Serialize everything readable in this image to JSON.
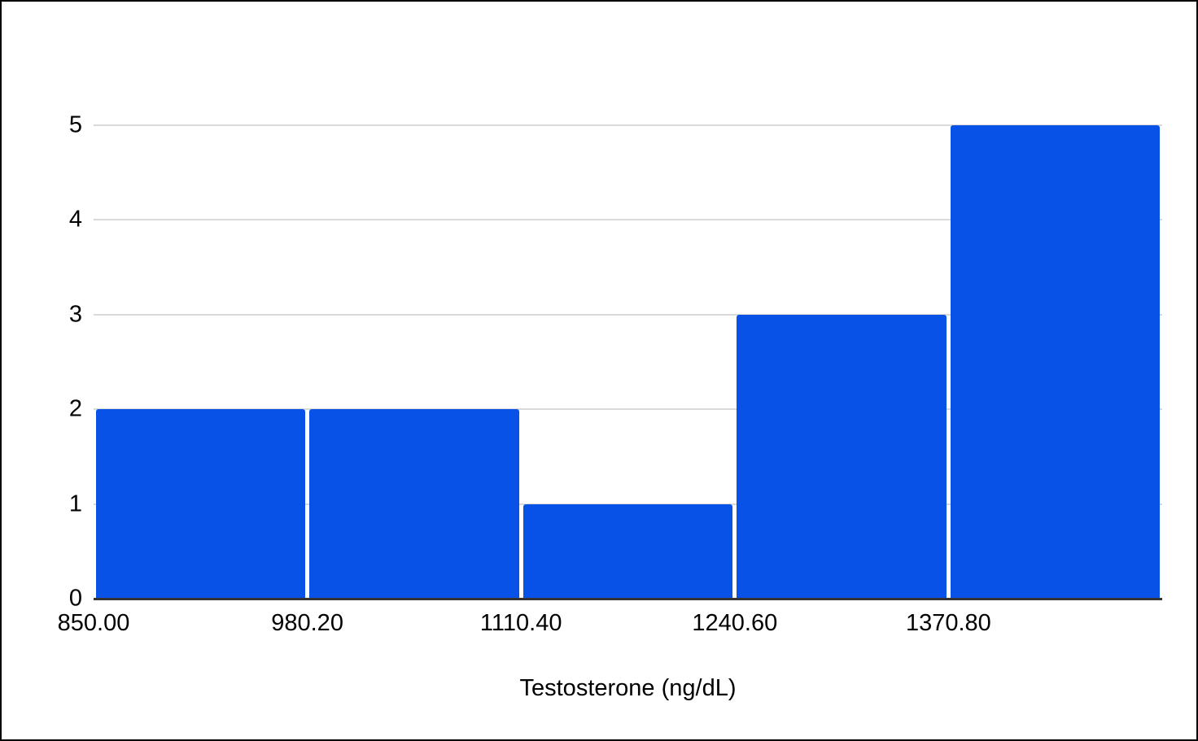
{
  "chart_data": {
    "type": "bar",
    "subtype": "histogram",
    "title": "",
    "xlabel": "Testosterone (ng/dL)",
    "ylabel": "",
    "categories": [
      "850.00",
      "980.20",
      "1110.40",
      "1240.60",
      "1370.80"
    ],
    "bin_start": 850.0,
    "bin_width": 130.2,
    "values": [
      2,
      2,
      1,
      3,
      5
    ],
    "y_ticks": [
      "0",
      "1",
      "2",
      "3",
      "4",
      "5"
    ],
    "ylim": [
      0,
      5
    ],
    "grid": true,
    "legend": "none",
    "bar_color": "#0852e8",
    "gridline_color": "#d9d9d9",
    "axis_line_color": "#333333",
    "text_color": "#000000",
    "background_color": "#ffffff",
    "frame_color": "#000000"
  }
}
